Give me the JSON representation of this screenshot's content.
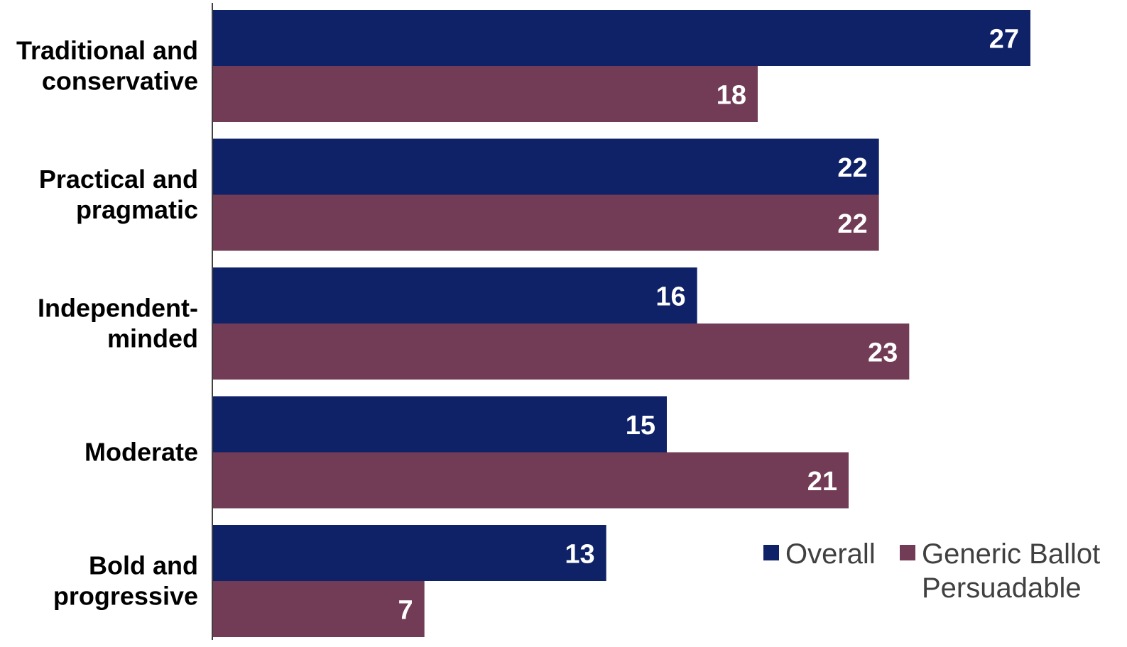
{
  "chart_data": {
    "type": "bar",
    "orientation": "horizontal",
    "title": "",
    "xlabel": "",
    "ylabel": "",
    "categories": [
      [
        "Traditional and",
        "conservative"
      ],
      [
        "Practical and",
        "pragmatic"
      ],
      [
        "Independent-",
        "minded"
      ],
      [
        "Moderate"
      ],
      [
        "Bold and",
        "progressive"
      ]
    ],
    "series": [
      {
        "name": "Overall",
        "color": "#0f2167",
        "values": [
          27,
          22,
          16,
          15,
          13
        ]
      },
      {
        "name": "Generic Ballot Persuadable",
        "legend_lines": [
          "Generic Ballot",
          "Persuadable"
        ],
        "color": "#723c56",
        "values": [
          18,
          22,
          23,
          21,
          7
        ]
      }
    ],
    "xlim": [
      0,
      30
    ],
    "grid": false,
    "legend_position": "bottom-right",
    "data_labels": true
  }
}
